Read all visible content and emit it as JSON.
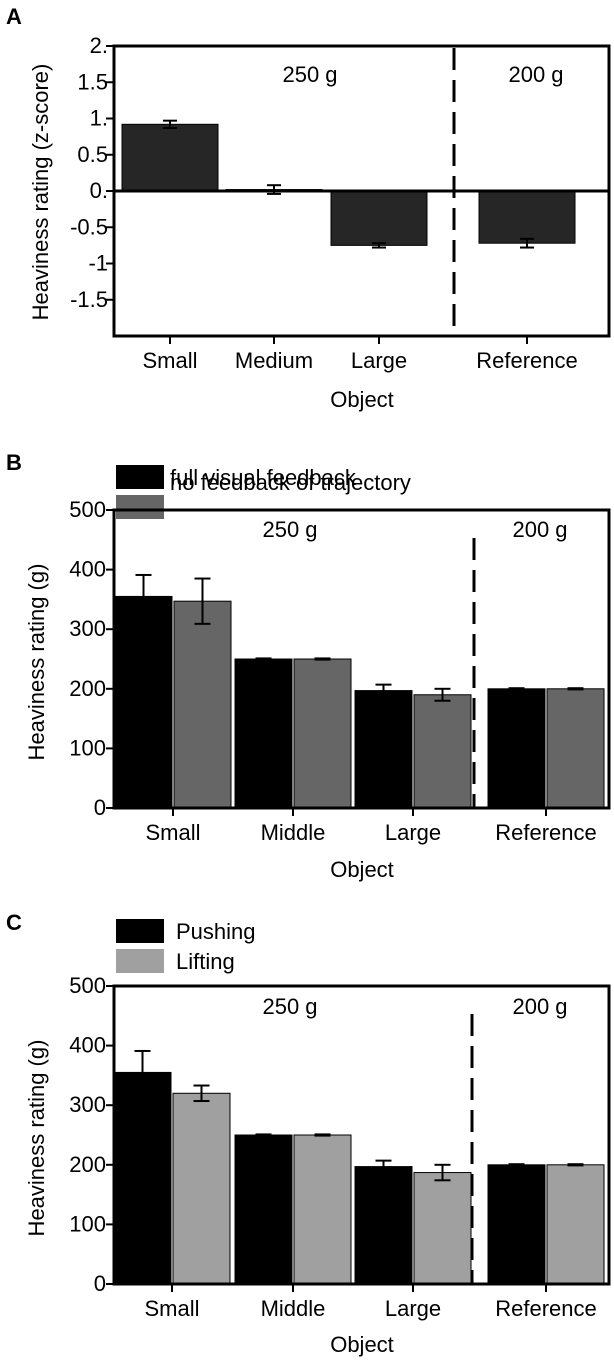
{
  "chart_data": [
    {
      "panel": "A",
      "type": "bar",
      "ylabel": "Heaviness rating (z-score)",
      "xlabel": "Object",
      "categories": [
        "Small",
        "Medium",
        "Large",
        "Reference"
      ],
      "yticks": [
        2.0,
        1.5,
        1.0,
        0.5,
        0.0,
        -0.5,
        -1.0,
        -1.5
      ],
      "ytick_labels": [
        "2.",
        "1.5",
        "1.",
        "0.5",
        "0.",
        "-0.5",
        "-1",
        "-1.5"
      ],
      "ylim": [
        -2.0,
        2.0
      ],
      "series": [
        {
          "values": [
            0.92,
            0.02,
            -0.75,
            -0.72
          ],
          "errors": [
            0.05,
            0.06,
            0.03,
            0.06
          ],
          "color": "#262626"
        }
      ],
      "annotations": [
        "250 g",
        "200 g"
      ],
      "legend": []
    },
    {
      "panel": "B",
      "type": "bar",
      "ylabel": "Heaviness rating (g)",
      "xlabel": "Object",
      "categories": [
        "Small",
        "Middle",
        "Large",
        "Reference"
      ],
      "yticks": [
        0,
        100,
        200,
        300,
        400,
        500
      ],
      "ytick_labels": [
        "0",
        "100",
        "200",
        "300",
        "400",
        "500"
      ],
      "ylim": [
        0,
        500
      ],
      "series": [
        {
          "name": "full visual feedback",
          "values": [
            355,
            250,
            197,
            200
          ],
          "errors": [
            36,
            1,
            10,
            1
          ],
          "color": "#000000"
        },
        {
          "name": "no feedback of trajectory",
          "values": [
            347,
            250,
            190,
            200
          ],
          "errors": [
            38,
            1,
            10,
            1
          ],
          "color": "#666666"
        }
      ],
      "annotations": [
        "250 g",
        "200 g"
      ],
      "legend": [
        "full visual feedback",
        "no feedback of trajectory"
      ]
    },
    {
      "panel": "C",
      "type": "bar",
      "ylabel": "Heaviness rating (g)",
      "xlabel": "Object",
      "categories": [
        "Small",
        "Middle",
        "Large",
        "Reference"
      ],
      "yticks": [
        0,
        100,
        200,
        300,
        400,
        500
      ],
      "ytick_labels": [
        "0",
        "100",
        "200",
        "300",
        "400",
        "500"
      ],
      "ylim": [
        0,
        500
      ],
      "series": [
        {
          "name": "Pushing",
          "values": [
            355,
            250,
            197,
            200
          ],
          "errors": [
            36,
            1,
            10,
            1
          ],
          "color": "#000000"
        },
        {
          "name": "Lifting",
          "values": [
            320,
            250,
            187,
            200
          ],
          "errors": [
            13,
            1,
            13,
            1
          ],
          "color": "#a0a0a0"
        }
      ],
      "annotations": [
        "250 g",
        "200 g"
      ],
      "legend": [
        "Pushing",
        "Lifting"
      ]
    }
  ]
}
